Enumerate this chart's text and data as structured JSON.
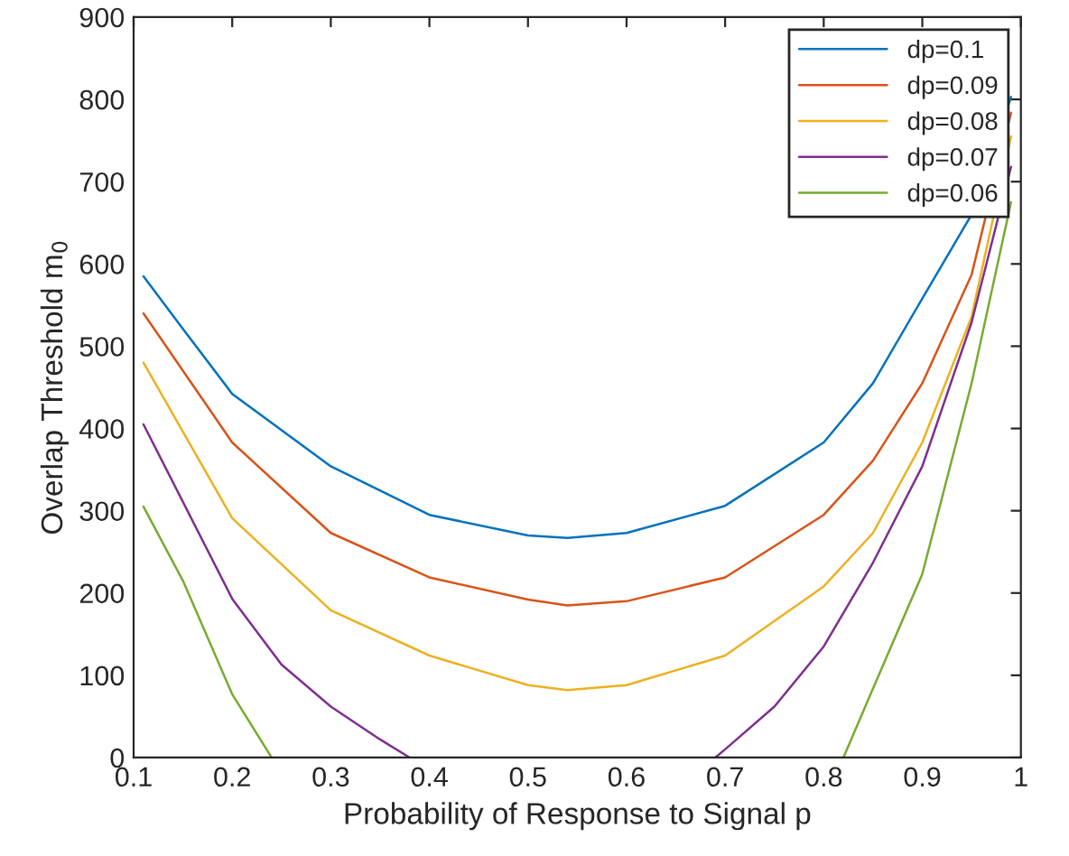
{
  "chart_data": {
    "type": "line",
    "xlabel": "Probability of Response to Signal p",
    "ylabel": "Overlap Threshold m$_{0}$",
    "xlim": [
      0.1,
      1
    ],
    "xticks": [
      0.1,
      0.2,
      0.3,
      0.4,
      0.5,
      0.6,
      0.7,
      0.8,
      0.9,
      1
    ],
    "ylim": [
      0,
      900
    ],
    "yticks": [
      0,
      100,
      200,
      300,
      400,
      500,
      600,
      700,
      800,
      900
    ],
    "grid": false,
    "legend": "top right",
    "marker": "none",
    "line_style": "solid",
    "series": [
      {
        "name": "dp=0.1",
        "color": "#0072bd",
        "x": [
          0.11,
          0.15,
          0.2,
          0.3,
          0.4,
          0.5,
          0.54,
          0.6,
          0.7,
          0.8,
          0.85,
          0.9,
          0.95,
          0.99
        ],
        "values": [
          585,
          521,
          442,
          354,
          295,
          270,
          267,
          273,
          306,
          383,
          455,
          558,
          660,
          803
        ]
      },
      {
        "name": "dp=0.09",
        "color": "#d95319",
        "x": [
          0.11,
          0.2,
          0.3,
          0.4,
          0.5,
          0.54,
          0.6,
          0.7,
          0.8,
          0.85,
          0.9,
          0.95,
          0.99
        ],
        "values": [
          540,
          383,
          273,
          219,
          192,
          185,
          190,
          219,
          295,
          361,
          455,
          587,
          784
        ]
      },
      {
        "name": "dp=0.08",
        "color": "#edb120",
        "x": [
          0.11,
          0.2,
          0.3,
          0.4,
          0.5,
          0.54,
          0.6,
          0.7,
          0.8,
          0.85,
          0.9,
          0.95,
          0.99
        ],
        "values": [
          480,
          291,
          179,
          124,
          88,
          82,
          88,
          124,
          208,
          273,
          383,
          536,
          755
        ]
      },
      {
        "name": "dp=0.07",
        "color": "#7e2f8e",
        "x": [
          0.11,
          0.2,
          0.25,
          0.3,
          0.35,
          0.38,
          null,
          0.69,
          0.7,
          0.75,
          0.8,
          0.85,
          0.9,
          0.95,
          0.99
        ],
        "values": [
          405,
          193,
          113,
          62,
          22,
          0,
          null,
          0,
          10,
          62,
          135,
          237,
          354,
          529,
          718
        ]
      },
      {
        "name": "dp=0.06",
        "color": "#77ac30",
        "x": [
          0.11,
          0.15,
          0.2,
          0.24,
          null,
          0.82,
          0.85,
          0.9,
          0.95,
          0.99
        ],
        "values": [
          305,
          215,
          77,
          0,
          null,
          0,
          84,
          223,
          455,
          675
        ]
      }
    ]
  }
}
